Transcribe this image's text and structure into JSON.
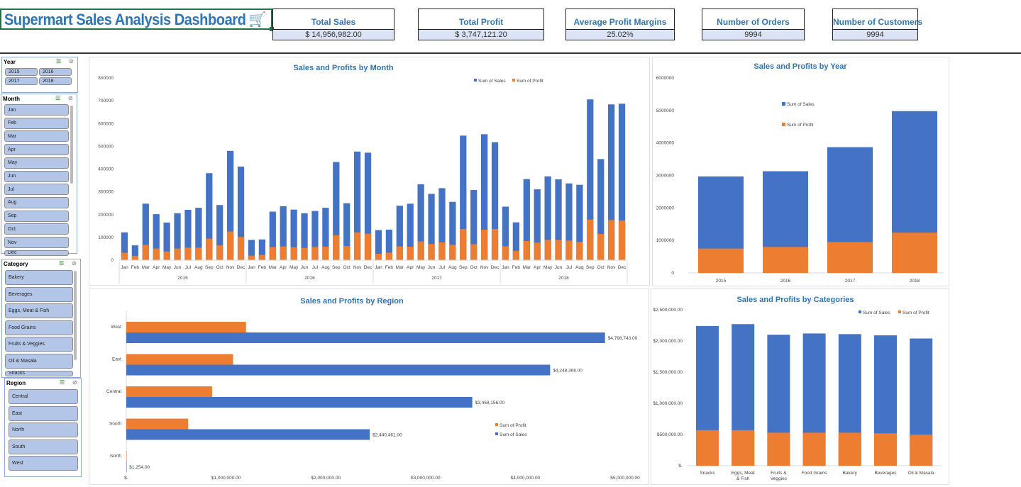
{
  "header": {
    "title": "Supermart Sales Analysis Dashboard",
    "cart_icon": "shopping-cart-icon"
  },
  "kpis": [
    {
      "label": "Total Sales",
      "value": "$ 14,956,982.00"
    },
    {
      "label": "Total Profit",
      "value": "$ 3,747,121.20"
    },
    {
      "label": "Average Profit Margins",
      "value": "25.02%"
    },
    {
      "label": "Number of Orders",
      "value": "9994"
    },
    {
      "label": "Number of Customers",
      "value": "9994"
    }
  ],
  "slicers": {
    "year": {
      "title": "Year",
      "items": [
        "2015",
        "2016",
        "2017",
        "2018"
      ]
    },
    "month": {
      "title": "Month",
      "items": [
        "Jan",
        "Feb",
        "Mar",
        "Apr",
        "May",
        "Jun",
        "Jul",
        "Aug",
        "Sep",
        "Oct",
        "Nov",
        "Dec"
      ]
    },
    "category": {
      "title": "Category",
      "items": [
        "Bakery",
        "Beverages",
        "Eggs, Meat  & Fish",
        "Food Grains",
        "Fruits & Veggies",
        "Oil & Masala",
        "Snacks"
      ]
    },
    "region": {
      "title": "Region",
      "items": [
        "Central",
        "East",
        "North",
        "South",
        "West"
      ]
    }
  },
  "colors": {
    "sales": "#4472c4",
    "profit": "#ed7d31"
  },
  "chart_data": [
    {
      "id": "month",
      "type": "bar",
      "title": "Sales and Profits by Month",
      "legend": [
        "Sum of Sales",
        "Sum of Profit"
      ],
      "legend_position": "top-right",
      "yticks": [
        "0",
        "100000",
        "200000",
        "300000",
        "400000",
        "500000",
        "600000",
        "700000",
        "800000"
      ],
      "ylim": [
        0,
        800000
      ],
      "months": [
        "Jan",
        "Feb",
        "Mar",
        "Apr",
        "May",
        "Jun",
        "Jul",
        "Aug",
        "Sep",
        "Oct",
        "Nov",
        "Dec"
      ],
      "years": [
        "2015",
        "2016",
        "2017",
        "2018"
      ],
      "series": [
        {
          "name": "Sum of Sales",
          "values": [
            122000,
            65000,
            248000,
            202000,
            165000,
            206000,
            221000,
            230000,
            382000,
            242000,
            480000,
            411000,
            89000,
            91000,
            213000,
            237000,
            222000,
            206000,
            216000,
            230000,
            431000,
            250000,
            477000,
            472000,
            132000,
            134000,
            239000,
            248000,
            333000,
            291000,
            316000,
            256000,
            547000,
            308000,
            553000,
            518000,
            235000,
            166000,
            356000,
            311000,
            368000,
            355000,
            337000,
            331000,
            706000,
            444000,
            684000,
            687000
          ]
        },
        {
          "name": "Sum of Profit",
          "values": [
            33000,
            19000,
            67000,
            51000,
            38000,
            51000,
            55000,
            55000,
            95000,
            65000,
            126000,
            102000,
            20000,
            23000,
            58000,
            60000,
            57000,
            54000,
            58000,
            59000,
            109000,
            62000,
            122000,
            116000,
            28000,
            33000,
            60000,
            59000,
            82000,
            71000,
            78000,
            67000,
            137000,
            70000,
            134000,
            137000,
            61000,
            41000,
            84000,
            77000,
            89000,
            89000,
            86000,
            80000,
            178000,
            115000,
            176000,
            174000
          ]
        }
      ]
    },
    {
      "id": "year",
      "type": "bar",
      "title": "Sales and Profits by Year",
      "legend": [
        "Sum of Sales",
        "Sum of Profit"
      ],
      "legend_position": "top-center",
      "categories": [
        "2015",
        "2016",
        "2017",
        "2018"
      ],
      "yticks": [
        "0",
        "1000000",
        "2000000",
        "3000000",
        "4000000",
        "5000000",
        "6000000"
      ],
      "ylim": [
        0,
        6000000
      ],
      "series": [
        {
          "name": "Sum of Sales",
          "values": [
            2970000,
            3130000,
            3870000,
            4980000
          ]
        },
        {
          "name": "Sum of Profit",
          "values": [
            750000,
            800000,
            950000,
            1240000
          ]
        }
      ]
    },
    {
      "id": "region",
      "type": "bar",
      "orientation": "horizontal",
      "title": "Sales and Profits by Region",
      "legend": [
        "Sum of Profit",
        "Sum of Sales"
      ],
      "legend_position": "bottom-right",
      "categories": [
        "West",
        "East",
        "Central",
        "South",
        "North"
      ],
      "xticks": [
        "$-",
        "$1,000,000.00",
        "$2,000,000.00",
        "$3,000,000.00",
        "$4,000,000.00",
        "$5,000,000.00"
      ],
      "xlim": [
        0,
        5000000
      ],
      "series": [
        {
          "name": "Sum of Profit",
          "values": [
            1200000,
            1070000,
            860000,
            620000,
            300
          ]
        },
        {
          "name": "Sum of Sales",
          "values": [
            4798743,
            4248368,
            3468156,
            2440461,
            1254
          ]
        }
      ],
      "data_labels": [
        "$4,798,743.00",
        "$4,248,368.00",
        "$3,468,156.00",
        "$2,440,461.00",
        "$1,254.00"
      ]
    },
    {
      "id": "category",
      "type": "bar",
      "title": "Sales and Profits by Categories",
      "legend": [
        "Sum of Sales",
        "Sum of Profit"
      ],
      "legend_position": "top-right",
      "categories": [
        "Snacks",
        "Eggs, Meat & Fish",
        "Fruits & Veggies",
        "Food Grains",
        "Bakery",
        "Beverages",
        "Oil & Masala"
      ],
      "yticks": [
        "$-",
        "$500,000.00",
        "$1,000,000.00",
        "$1,500,000.00",
        "$2,000,000.00",
        "$2,500,000.00"
      ],
      "ylim": [
        0,
        2500000
      ],
      "series": [
        {
          "name": "Sum of Sales",
          "values": [
            2240000,
            2270000,
            2100000,
            2120000,
            2110000,
            2090000,
            2040000
          ]
        },
        {
          "name": "Sum of Profit",
          "values": [
            570000,
            570000,
            530000,
            530000,
            530000,
            520000,
            500000
          ]
        }
      ]
    }
  ]
}
